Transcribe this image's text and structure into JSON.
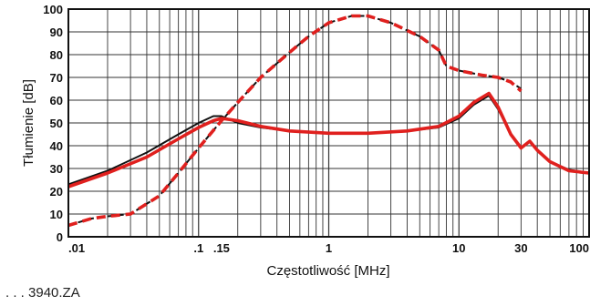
{
  "chart_data": {
    "type": "line",
    "title": "",
    "xlabel": "Częstotliwość [MHz]",
    "ylabel": "Tłumienie [dB]",
    "x_scale": "log",
    "xlim": [
      0.01,
      100
    ],
    "ylim": [
      0,
      100
    ],
    "grid": true,
    "x_ticks": [
      0.01,
      0.1,
      0.15,
      1,
      10,
      30,
      100
    ],
    "x_tick_labels": [
      ".01",
      ".1",
      ".15",
      "1",
      "10",
      "30",
      "100"
    ],
    "y_ticks": [
      0,
      10,
      20,
      30,
      40,
      50,
      60,
      70,
      80,
      90,
      100
    ],
    "y_tick_labels": [
      "0",
      "10",
      "20",
      "30",
      "40",
      "50",
      "60",
      "70",
      "80",
      "90",
      "100"
    ],
    "series": [
      {
        "style": "solid-black",
        "color": "#111111",
        "x": [
          0.01,
          0.02,
          0.04,
          0.07,
          0.1,
          0.13,
          0.15,
          0.2,
          0.3,
          0.5,
          1,
          2,
          4,
          7,
          10,
          13,
          17,
          20,
          25,
          30,
          35,
          40,
          50,
          70,
          100
        ],
        "y": [
          23,
          29,
          37,
          45,
          50,
          53,
          53,
          50,
          48,
          46.5,
          45.5,
          45.5,
          46.5,
          48,
          52,
          58,
          62,
          56,
          45,
          39,
          42,
          38,
          33,
          29.5,
          28
        ]
      },
      {
        "style": "solid-red",
        "color": "#e0201e",
        "x": [
          0.01,
          0.02,
          0.04,
          0.07,
          0.1,
          0.13,
          0.15,
          0.2,
          0.3,
          0.5,
          1,
          2,
          4,
          7,
          10,
          13,
          17,
          20,
          25,
          30,
          35,
          40,
          50,
          70,
          100
        ],
        "y": [
          22,
          28,
          35,
          43,
          48,
          51,
          52,
          51,
          48.5,
          46.5,
          45.5,
          45.5,
          46.5,
          48.5,
          53,
          59,
          63,
          57,
          45,
          39,
          42,
          38,
          33,
          29,
          28
        ]
      },
      {
        "style": "dashed-black",
        "color": "#111111",
        "x": [
          0.01,
          0.015,
          0.02,
          0.03,
          0.05,
          0.07,
          0.1,
          0.15,
          0.2,
          0.3,
          0.5,
          0.7,
          1,
          1.5,
          2,
          3,
          5,
          7,
          8,
          10,
          15,
          20,
          25,
          30
        ],
        "y": [
          5,
          8,
          9,
          10,
          18,
          28,
          39,
          51,
          59,
          70,
          81,
          88,
          94,
          97,
          97,
          94,
          88,
          82,
          75,
          73,
          71,
          70,
          68,
          65
        ]
      },
      {
        "style": "dashed-red",
        "color": "#e0201e",
        "x": [
          0.01,
          0.015,
          0.02,
          0.03,
          0.05,
          0.07,
          0.1,
          0.15,
          0.2,
          0.3,
          0.5,
          0.7,
          1,
          1.5,
          2,
          3,
          5,
          7,
          8,
          10,
          15,
          20,
          25,
          30
        ],
        "y": [
          5,
          8,
          9,
          10,
          18,
          28,
          39,
          51,
          59,
          70,
          81,
          88,
          94,
          97,
          97,
          94,
          88,
          82,
          75,
          73,
          71,
          70,
          68,
          64
        ]
      }
    ]
  },
  "footer_text": ". . . 3940.ZA"
}
